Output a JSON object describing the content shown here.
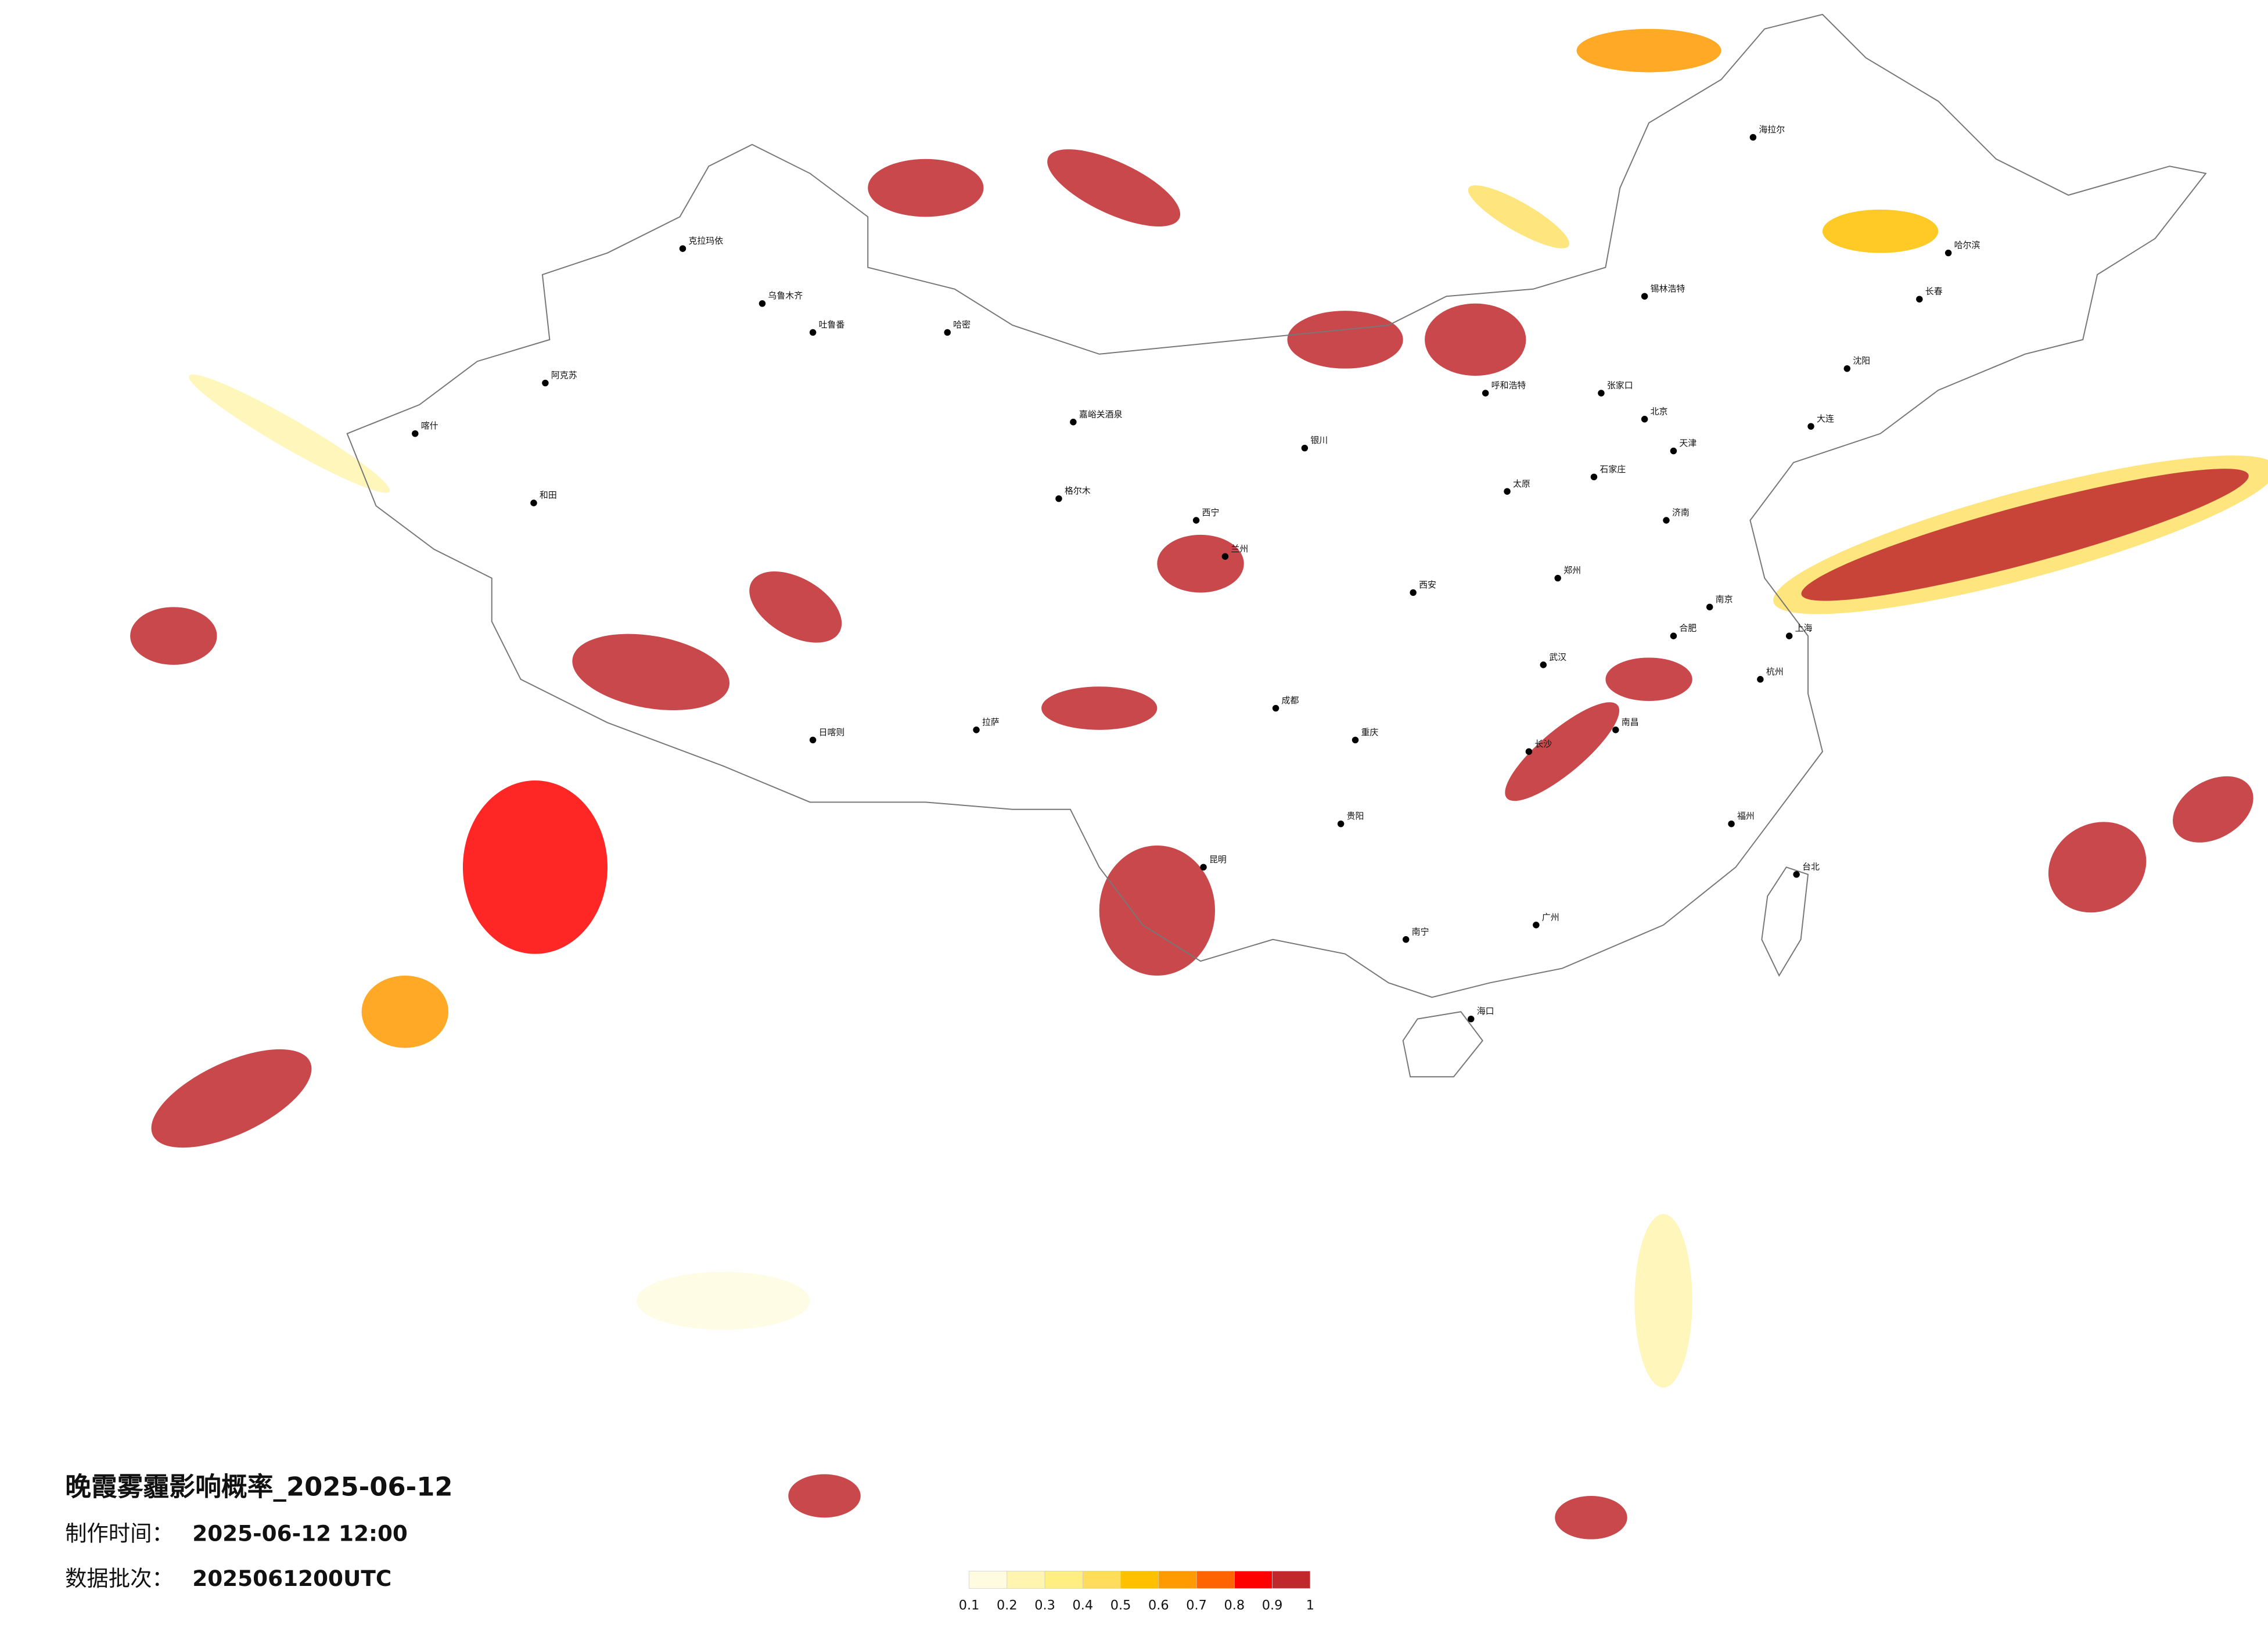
{
  "map": {
    "title": "晚霞雾霾影响概率_2025-06-12",
    "info": [
      {
        "label": "制作时间：",
        "value": "2025-06-12 12:00"
      },
      {
        "label": "数据批次：",
        "value": "2025061200UTC"
      }
    ],
    "legend": {
      "colors": [
        "#fffbe0",
        "#fff5b0",
        "#ffee80",
        "#ffdc5a",
        "#ffc000",
        "#ff9a00",
        "#ff6400",
        "#ff0000",
        "#c0282c"
      ],
      "ticks": [
        0.1,
        0.2,
        0.3,
        0.4,
        0.5,
        0.6,
        0.7,
        0.8,
        0.9,
        1
      ]
    },
    "cities": [
      "克拉玛依",
      "乌鲁木齐",
      "吐鲁番",
      "哈密",
      "阿克苏",
      "喀什",
      "和田",
      "嘉峪关酒泉",
      "格尔木",
      "西宁",
      "兰州",
      "银川",
      "呼和浩特",
      "锡林浩特",
      "海拉尔",
      "哈尔滨",
      "长春",
      "沈阳",
      "北京",
      "天津",
      "石家庄",
      "太原",
      "济南",
      "郑州",
      "西安",
      "成都",
      "重庆",
      "武汉",
      "合肥",
      "南京",
      "上海",
      "杭州",
      "长沙",
      "南昌",
      "福州",
      "贵阳",
      "昆明",
      "南宁",
      "广州",
      "海口",
      "台北",
      "拉萨",
      "日喀则",
      "张家口",
      "大连"
    ]
  }
}
